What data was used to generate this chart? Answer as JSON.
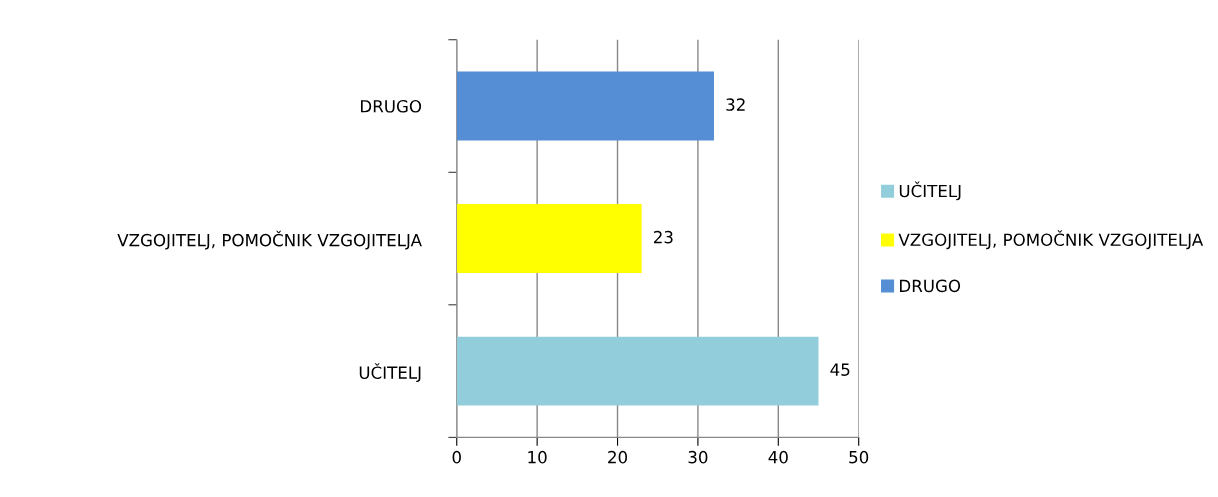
{
  "chart_data": {
    "type": "bar",
    "orientation": "horizontal",
    "categories": [
      "DRUGO",
      "VZGOJITELJ, POMOČNIK VZGOJITELJA",
      "UČITELJ"
    ],
    "series": [
      {
        "name": "UČITELJ",
        "color": "#92cddc",
        "values": [
          null,
          null,
          45
        ]
      },
      {
        "name": "VZGOJITELJ, POMOČNIK VZGOJITELJA",
        "color": "#ffff00",
        "values": [
          null,
          23,
          null
        ]
      },
      {
        "name": "DRUGO",
        "color": "#558ed5",
        "values": [
          32,
          null,
          null
        ]
      }
    ],
    "xlim": [
      0,
      50
    ],
    "xticks": [
      0,
      10,
      20,
      30,
      40,
      50
    ],
    "grid": "x",
    "legend": "right",
    "data_labels": true
  }
}
